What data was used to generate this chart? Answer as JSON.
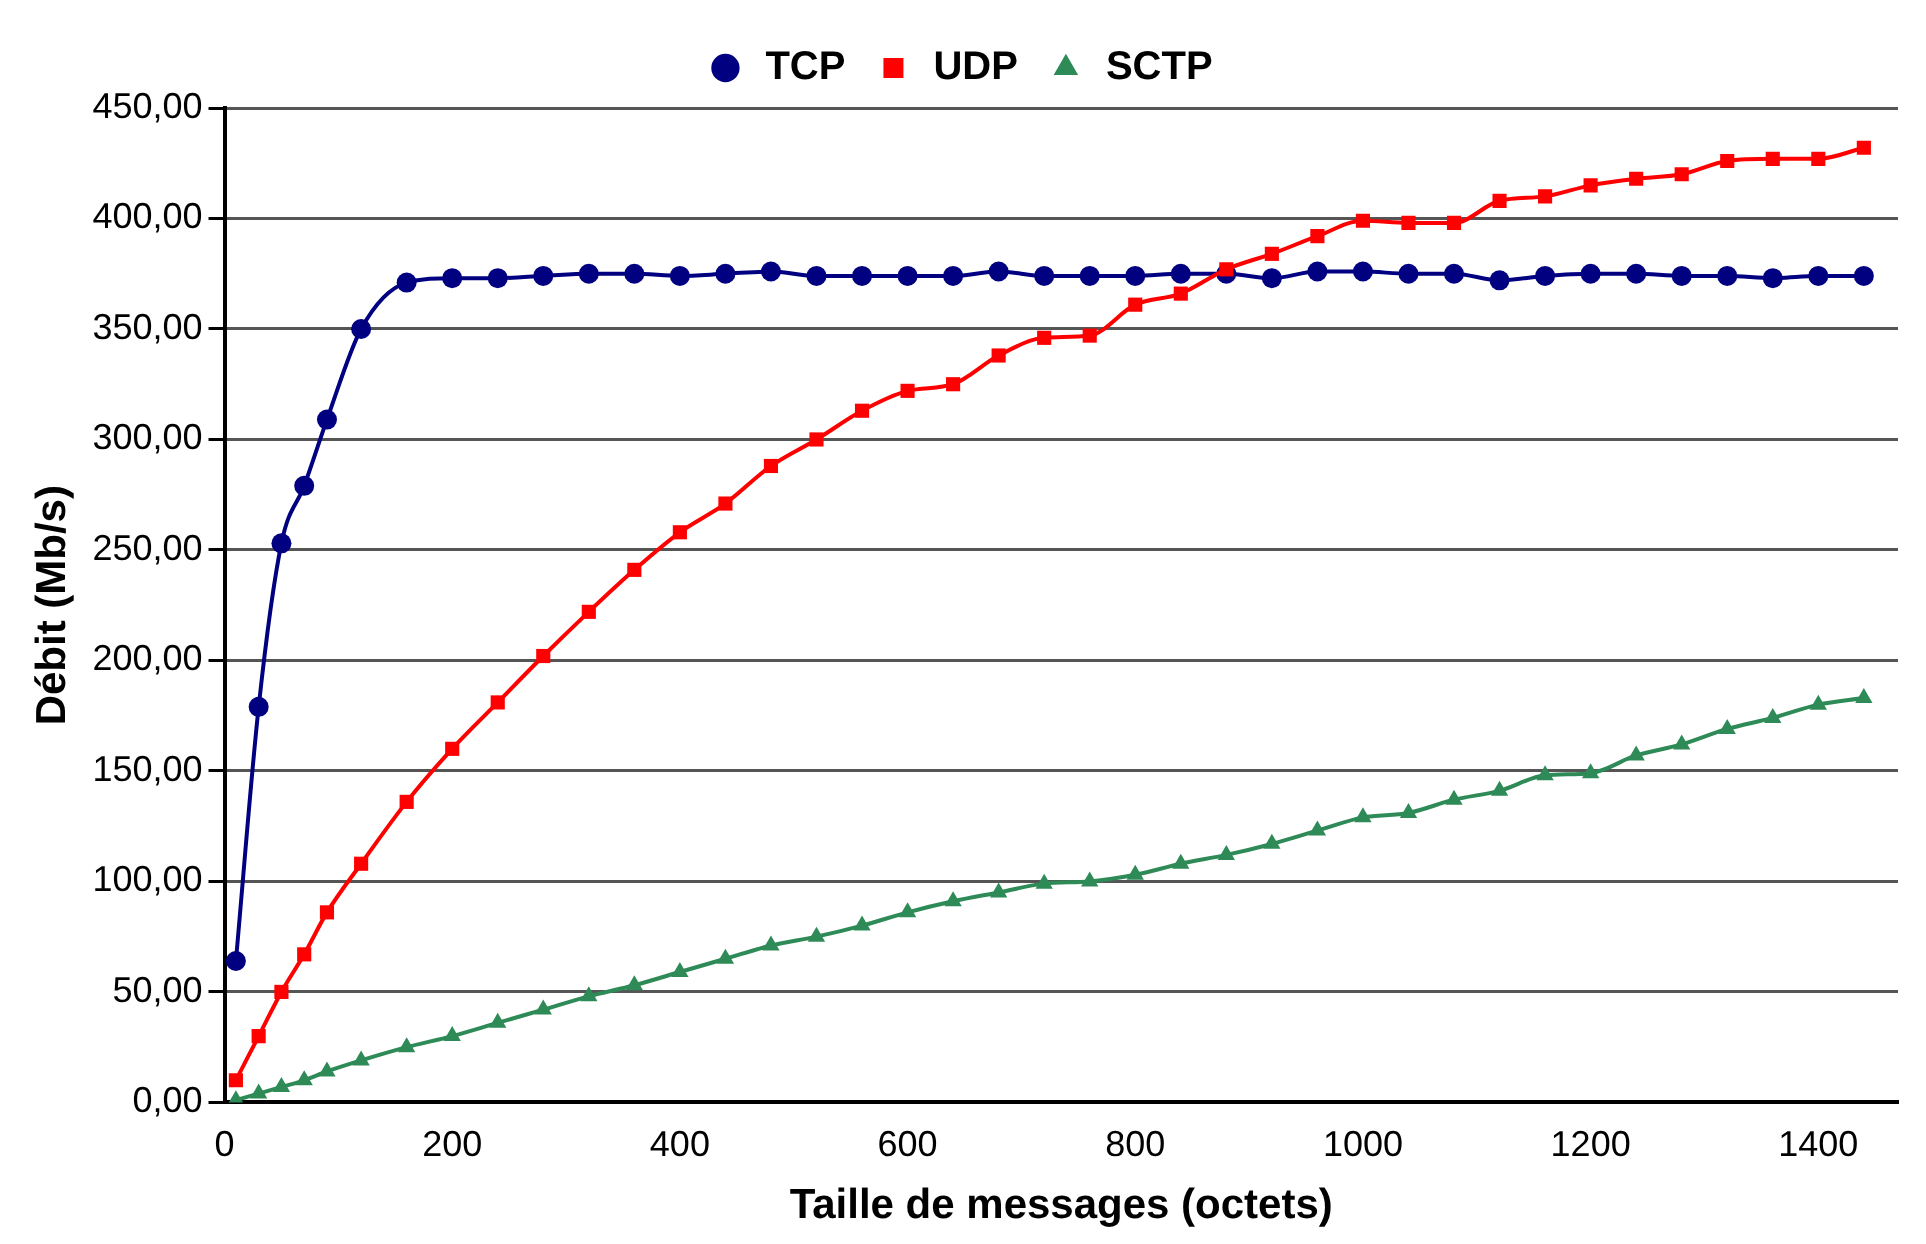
{
  "chart_data": {
    "type": "line",
    "xlabel": "Taille de messages (octets)",
    "ylabel": "Débit (Mb/s)",
    "x": [
      10,
      30,
      50,
      70,
      90,
      120,
      160,
      200,
      240,
      280,
      320,
      360,
      400,
      440,
      480,
      520,
      560,
      600,
      640,
      680,
      720,
      760,
      800,
      840,
      880,
      920,
      960,
      1000,
      1040,
      1080,
      1120,
      1160,
      1200,
      1240,
      1280,
      1320,
      1360,
      1400,
      1440
    ],
    "series": [
      {
        "name": "TCP",
        "color": "#000080",
        "marker": "circle",
        "values": [
          64,
          179,
          253,
          279,
          309,
          350,
          371,
          373,
          373,
          374,
          375,
          375,
          374,
          375,
          376,
          374,
          374,
          374,
          374,
          376,
          374,
          374,
          374,
          375,
          375,
          373,
          376,
          376,
          375,
          375,
          372,
          374,
          375,
          375,
          374,
          374,
          373,
          374,
          374
        ]
      },
      {
        "name": "UDP",
        "color": "#ff0000",
        "marker": "square",
        "values": [
          10,
          30,
          50,
          67,
          86,
          108,
          136,
          160,
          181,
          202,
          222,
          241,
          258,
          271,
          288,
          300,
          313,
          322,
          325,
          338,
          346,
          347,
          361,
          366,
          377,
          384,
          392,
          399,
          398,
          398,
          408,
          410,
          415,
          418,
          420,
          426,
          427,
          427,
          432
        ]
      },
      {
        "name": "SCTP",
        "color": "#2e8b57",
        "marker": "triangle",
        "values": [
          1,
          4,
          7,
          10,
          14,
          19,
          25,
          30,
          36,
          42,
          48,
          53,
          59,
          65,
          71,
          75,
          80,
          86,
          91,
          95,
          99,
          100,
          103,
          108,
          112,
          117,
          123,
          129,
          131,
          137,
          141,
          148,
          149,
          157,
          162,
          169,
          174,
          180,
          183
        ]
      }
    ],
    "xlim": [
      0,
      1470
    ],
    "xticks": [
      0,
      200,
      400,
      600,
      800,
      1000,
      1200,
      1400
    ],
    "ylim": [
      0,
      450
    ],
    "yticks": [
      {
        "value": 0,
        "label": "0,00"
      },
      {
        "value": 50,
        "label": "50,00"
      },
      {
        "value": 100,
        "label": "100,00"
      },
      {
        "value": 150,
        "label": "150,00"
      },
      {
        "value": 200,
        "label": "200,00"
      },
      {
        "value": 250,
        "label": "250,00"
      },
      {
        "value": 300,
        "label": "300,00"
      },
      {
        "value": 350,
        "label": "350,00"
      },
      {
        "value": 400,
        "label": "400,00"
      },
      {
        "value": 450,
        "label": "450,00"
      }
    ],
    "grid": "y",
    "legend": "top"
  }
}
